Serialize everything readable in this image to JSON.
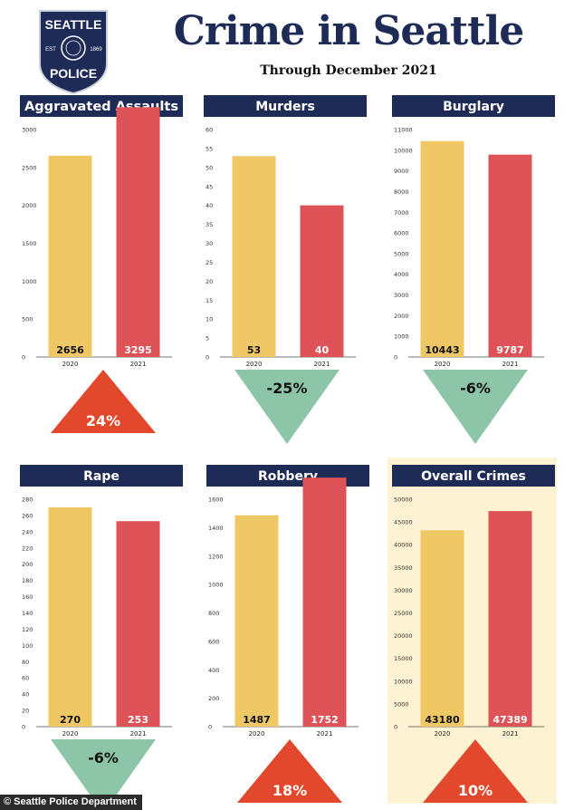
{
  "header": {
    "title": "Crime in Seattle",
    "subtitle": "Through December 2021"
  },
  "logo": {
    "top": "SEATTLE",
    "bottom": "POLICE",
    "est": "EST",
    "year": "1869",
    "icon": "seattle-police-badge"
  },
  "footer": {
    "credit": "© Seattle Police Department"
  },
  "colors": {
    "navy": "#1e2b57",
    "bar_2020": "#efc865",
    "bar_2021": "#dd5357",
    "increase": "#e2482b",
    "decrease": "#8dc5a8",
    "highlight_bg": "#fdf3d2"
  },
  "chart_data": [
    {
      "type": "bar",
      "title": "Aggravated Assaults",
      "categories": [
        "2020",
        "2021"
      ],
      "values": [
        2656,
        3295
      ],
      "value_labels": [
        "2656",
        "3295"
      ],
      "yticks": [
        0,
        500,
        1000,
        1500,
        2000,
        2500,
        3000
      ],
      "ylim": [
        0,
        3000
      ],
      "change": "24%",
      "direction": "up"
    },
    {
      "type": "bar",
      "title": "Murders",
      "categories": [
        "2020",
        "2021"
      ],
      "values": [
        53,
        40
      ],
      "value_labels": [
        "53",
        "40"
      ],
      "yticks": [
        0,
        5,
        10,
        15,
        20,
        25,
        30,
        35,
        40,
        45,
        50,
        55,
        60
      ],
      "ylim": [
        0,
        60
      ],
      "change": "-25%",
      "direction": "down"
    },
    {
      "type": "bar",
      "title": "Burglary",
      "categories": [
        "2020",
        "2021"
      ],
      "values": [
        10443,
        9787
      ],
      "value_labels": [
        "10443",
        "9787"
      ],
      "yticks": [
        0,
        1000,
        2000,
        3000,
        4000,
        5000,
        6000,
        7000,
        8000,
        9000,
        10000,
        11000
      ],
      "ylim": [
        0,
        11000
      ],
      "change": "-6%",
      "direction": "down"
    },
    {
      "type": "bar",
      "title": "Rape",
      "categories": [
        "2020",
        "2021"
      ],
      "values": [
        270,
        253
      ],
      "value_labels": [
        "270",
        "253"
      ],
      "yticks": [
        0,
        20,
        40,
        60,
        80,
        100,
        120,
        140,
        160,
        180,
        200,
        220,
        240,
        260,
        280
      ],
      "ylim": [
        0,
        280
      ],
      "change": "-6%",
      "direction": "down"
    },
    {
      "type": "bar",
      "title": "Robbery",
      "categories": [
        "2020",
        "2021"
      ],
      "values": [
        1487,
        1752
      ],
      "value_labels": [
        "1487",
        "1752"
      ],
      "yticks": [
        0,
        200,
        400,
        600,
        800,
        1000,
        1200,
        1400,
        1600
      ],
      "ylim": [
        0,
        1600
      ],
      "change": "18%",
      "direction": "up"
    },
    {
      "type": "bar",
      "title": "Overall Crimes",
      "categories": [
        "2020",
        "2021"
      ],
      "values": [
        43180,
        47389
      ],
      "value_labels": [
        "43180",
        "47389"
      ],
      "yticks": [
        0,
        5000,
        10000,
        15000,
        20000,
        25000,
        30000,
        35000,
        40000,
        45000,
        50000
      ],
      "ylim": [
        0,
        50000
      ],
      "change": "10%",
      "direction": "up",
      "highlighted": true
    }
  ]
}
